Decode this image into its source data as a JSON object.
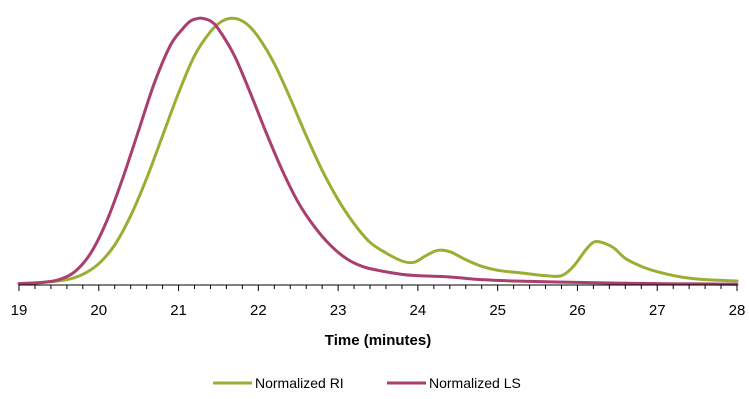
{
  "chart_data": {
    "type": "line",
    "title": "",
    "xlabel": "Time (minutes)",
    "ylabel": "",
    "xlim": [
      19,
      28
    ],
    "ylim": [
      0,
      1.02
    ],
    "x_ticks": [
      19,
      20,
      21,
      22,
      23,
      24,
      25,
      26,
      27,
      28
    ],
    "minor_ticks_per_major": 5,
    "grid": false,
    "y_axis_visible": false,
    "legend_position": "bottom-center",
    "series": [
      {
        "name": "Normalized RI",
        "color": "#9BAE34",
        "x": [
          19.0,
          19.3,
          19.6,
          19.8,
          20.0,
          20.2,
          20.4,
          20.6,
          20.8,
          21.0,
          21.2,
          21.4,
          21.55,
          21.7,
          21.85,
          22.0,
          22.2,
          22.4,
          22.6,
          22.8,
          23.0,
          23.2,
          23.4,
          23.6,
          23.8,
          23.95,
          24.1,
          24.25,
          24.4,
          24.6,
          24.8,
          25.0,
          25.3,
          25.6,
          25.8,
          25.95,
          26.1,
          26.2,
          26.3,
          26.45,
          26.6,
          26.8,
          27.0,
          27.3,
          27.6,
          28.0
        ],
        "y": [
          0.005,
          0.01,
          0.02,
          0.04,
          0.08,
          0.15,
          0.26,
          0.4,
          0.56,
          0.72,
          0.86,
          0.95,
          0.99,
          1.0,
          0.98,
          0.93,
          0.83,
          0.7,
          0.56,
          0.43,
          0.32,
          0.23,
          0.16,
          0.12,
          0.09,
          0.085,
          0.11,
          0.13,
          0.125,
          0.095,
          0.07,
          0.055,
          0.045,
          0.035,
          0.035,
          0.07,
          0.13,
          0.16,
          0.16,
          0.14,
          0.1,
          0.07,
          0.05,
          0.03,
          0.02,
          0.015
        ]
      },
      {
        "name": "Normalized LS",
        "color": "#A93F6E",
        "x": [
          19.0,
          19.3,
          19.5,
          19.7,
          19.9,
          20.1,
          20.3,
          20.5,
          20.7,
          20.9,
          21.05,
          21.15,
          21.25,
          21.3,
          21.4,
          21.5,
          21.7,
          21.9,
          22.1,
          22.3,
          22.5,
          22.7,
          22.9,
          23.1,
          23.3,
          23.5,
          23.8,
          24.0,
          24.4,
          24.8,
          25.2,
          25.6,
          26.0,
          26.5,
          27.0,
          27.5,
          28.0
        ],
        "y": [
          0.005,
          0.01,
          0.02,
          0.05,
          0.12,
          0.24,
          0.4,
          0.58,
          0.76,
          0.9,
          0.96,
          0.99,
          1.0,
          1.0,
          0.99,
          0.96,
          0.86,
          0.72,
          0.57,
          0.43,
          0.31,
          0.22,
          0.15,
          0.1,
          0.07,
          0.055,
          0.04,
          0.035,
          0.03,
          0.02,
          0.015,
          0.012,
          0.01,
          0.007,
          0.005,
          0.004,
          0.003
        ]
      }
    ]
  }
}
